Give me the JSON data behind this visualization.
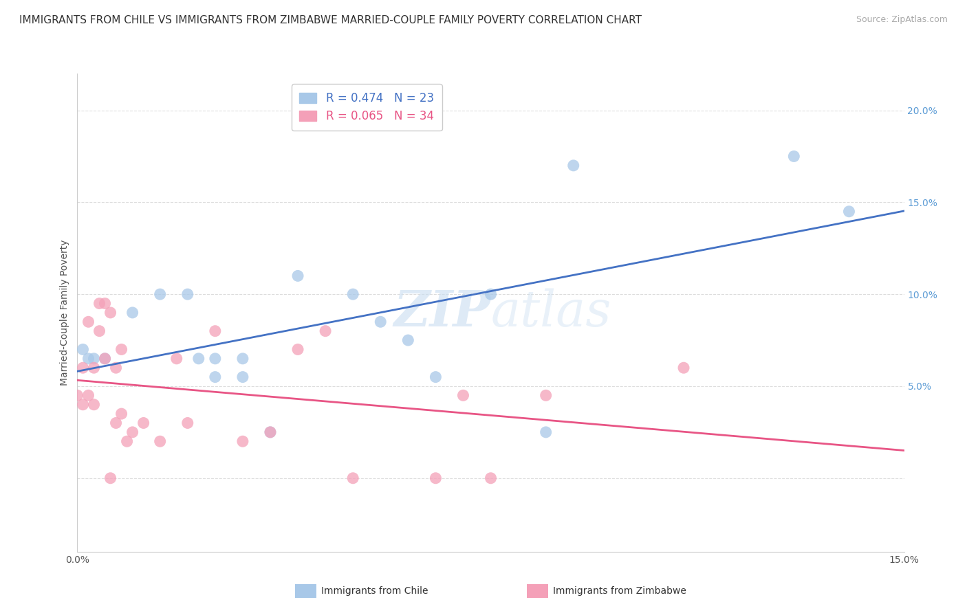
{
  "title": "IMMIGRANTS FROM CHILE VS IMMIGRANTS FROM ZIMBABWE MARRIED-COUPLE FAMILY POVERTY CORRELATION CHART",
  "source": "Source: ZipAtlas.com",
  "ylabel": "Married-Couple Family Poverty",
  "chile_R": 0.474,
  "chile_N": 23,
  "zimbabwe_R": 0.065,
  "zimbabwe_N": 34,
  "chile_color": "#a8c8e8",
  "zimbabwe_color": "#f4a0b8",
  "chile_line_color": "#4472c4",
  "zimbabwe_line_color": "#e85585",
  "xlim": [
    0.0,
    0.15
  ],
  "ylim": [
    -0.04,
    0.22
  ],
  "yticks": [
    0.0,
    0.05,
    0.1,
    0.15,
    0.2
  ],
  "ytick_labels": [
    "",
    "5.0%",
    "10.0%",
    "15.0%",
    "20.0%"
  ],
  "xticks": [
    0.0,
    0.05,
    0.1,
    0.15
  ],
  "xtick_labels": [
    "0.0%",
    "",
    "",
    "15.0%"
  ],
  "chile_scatter_x": [
    0.001,
    0.002,
    0.003,
    0.005,
    0.01,
    0.015,
    0.02,
    0.022,
    0.025,
    0.025,
    0.03,
    0.03,
    0.035,
    0.04,
    0.05,
    0.055,
    0.06,
    0.065,
    0.075,
    0.085,
    0.09,
    0.13,
    0.14
  ],
  "chile_scatter_y": [
    0.07,
    0.065,
    0.065,
    0.065,
    0.09,
    0.1,
    0.1,
    0.065,
    0.055,
    0.065,
    0.055,
    0.065,
    0.025,
    0.11,
    0.1,
    0.085,
    0.075,
    0.055,
    0.1,
    0.025,
    0.17,
    0.175,
    0.145
  ],
  "zimbabwe_scatter_x": [
    0.0,
    0.001,
    0.001,
    0.002,
    0.002,
    0.003,
    0.003,
    0.004,
    0.004,
    0.005,
    0.005,
    0.006,
    0.006,
    0.007,
    0.007,
    0.008,
    0.008,
    0.009,
    0.01,
    0.012,
    0.015,
    0.018,
    0.02,
    0.025,
    0.03,
    0.035,
    0.04,
    0.045,
    0.05,
    0.065,
    0.07,
    0.075,
    0.085,
    0.11
  ],
  "zimbabwe_scatter_y": [
    0.045,
    0.04,
    0.06,
    0.045,
    0.085,
    0.04,
    0.06,
    0.08,
    0.095,
    0.065,
    0.095,
    0.09,
    0.0,
    0.06,
    0.03,
    0.035,
    0.07,
    0.02,
    0.025,
    0.03,
    0.02,
    0.065,
    0.03,
    0.08,
    0.02,
    0.025,
    0.07,
    0.08,
    0.0,
    0.0,
    0.045,
    0.0,
    0.045,
    0.06
  ],
  "watermark_zip": "ZIP",
  "watermark_atlas": "atlas",
  "background_color": "#ffffff",
  "grid_color": "#dddddd",
  "title_fontsize": 11,
  "axis_label_fontsize": 10,
  "tick_fontsize": 10,
  "legend_fontsize": 12,
  "source_fontsize": 9
}
